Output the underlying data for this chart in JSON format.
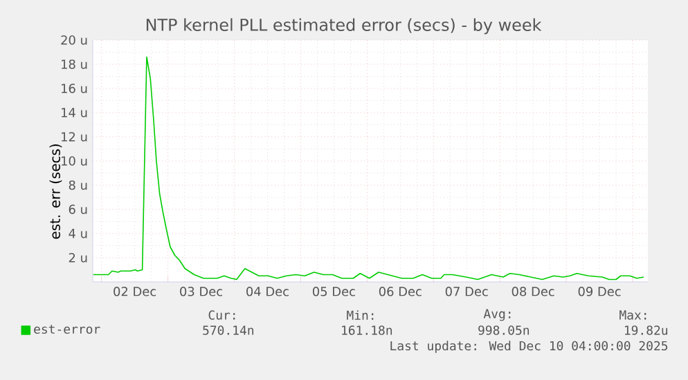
{
  "chart_data": {
    "type": "line",
    "title": "NTP kernel PLL estimated error (secs) - by week",
    "ylabel": "est. err (secs)",
    "xlim": [
      "2025-12-01T20:50",
      "2025-12-10T05:30"
    ],
    "ylim": [
      0,
      20
    ],
    "xticks": [
      {
        "value": "2025-12-02",
        "label": null
      },
      {
        "value": "2025-12-03",
        "label": null
      },
      {
        "value": "2025-12-04",
        "label": null
      },
      {
        "value": "2025-12-05",
        "label": null
      },
      {
        "value": "2025-12-06",
        "label": null
      },
      {
        "value": "2025-12-07",
        "label": null
      },
      {
        "value": "2025-12-08",
        "label": null
      },
      {
        "value": "2025-12-09",
        "label": null
      },
      {
        "value": "2025-12-10",
        "label": null
      },
      {
        "value": "2025-12-02T12:00",
        "label": "02 Dec"
      },
      {
        "value": "2025-12-03T12:00",
        "label": "03 Dec"
      },
      {
        "value": "2025-12-04T12:00",
        "label": "04 Dec"
      },
      {
        "value": "2025-12-05T12:00",
        "label": "05 Dec"
      },
      {
        "value": "2025-12-06T12:00",
        "label": "06 Dec"
      },
      {
        "value": "2025-12-07T12:00",
        "label": "07 Dec"
      },
      {
        "value": "2025-12-08T12:00",
        "label": "08 Dec"
      },
      {
        "value": "2025-12-09T12:00",
        "label": "09 Dec"
      }
    ],
    "yticks": [
      {
        "value": 2,
        "label": "2 u"
      },
      {
        "value": 4,
        "label": "4 u"
      },
      {
        "value": 6,
        "label": "6 u"
      },
      {
        "value": 8,
        "label": "8 u"
      },
      {
        "value": 10,
        "label": "10 u"
      },
      {
        "value": 12,
        "label": "12 u"
      },
      {
        "value": 14,
        "label": "14 u"
      },
      {
        "value": 16,
        "label": "16 u"
      },
      {
        "value": 18,
        "label": "18 u"
      },
      {
        "value": 20,
        "label": "20 u"
      }
    ],
    "grid": true,
    "legend": "bottom left",
    "series": [
      {
        "name": "est-error",
        "color": "#00cc00",
        "x": [
          "2025-12-01T21:00",
          "2025-12-02T02:30",
          "2025-12-02T03:50",
          "2025-12-02T06:00",
          "2025-12-02T07:00",
          "2025-12-02T10:30",
          "2025-12-02T12:10",
          "2025-12-02T13:00",
          "2025-12-02T14:45",
          "2025-12-02T16:20",
          "2025-12-02T17:40",
          "2025-12-02T18:50",
          "2025-12-02T19:50",
          "2025-12-02T21:00",
          "2025-12-02T22:10",
          "2025-12-02T23:30",
          "2025-12-03T00:50",
          "2025-12-03T02:30",
          "2025-12-03T04:10",
          "2025-12-03T06:10",
          "2025-12-03T09:30",
          "2025-12-03T12:50",
          "2025-12-03T17:50",
          "2025-12-03T20:20",
          "2025-12-03T22:50",
          "2025-12-04T00:50",
          "2025-12-04T03:50",
          "2025-12-04T06:20",
          "2025-12-04T08:50",
          "2025-12-04T12:10",
          "2025-12-04T15:30",
          "2025-12-04T18:50",
          "2025-12-04T22:10",
          "2025-12-05T01:30",
          "2025-12-05T04:50",
          "2025-12-05T08:10",
          "2025-12-05T11:30",
          "2025-12-05T14:50",
          "2025-12-05T19:00",
          "2025-12-05T21:30",
          "2025-12-06T00:50",
          "2025-12-06T04:10",
          "2025-12-06T07:30",
          "2025-12-06T12:30",
          "2025-12-06T16:40",
          "2025-12-06T20:00",
          "2025-12-06T23:20",
          "2025-12-07T02:40",
          "2025-12-07T03:50",
          "2025-12-07T06:50",
          "2025-12-07T11:50",
          "2025-12-07T16:00",
          "2025-12-07T21:00",
          "2025-12-08T01:10",
          "2025-12-08T03:40",
          "2025-12-08T07:00",
          "2025-12-08T11:10",
          "2025-12-08T15:20",
          "2025-12-08T19:30",
          "2025-12-08T22:50",
          "2025-12-09T01:20",
          "2025-12-09T03:50",
          "2025-12-09T08:00",
          "2025-12-09T13:00",
          "2025-12-09T15:30",
          "2025-12-09T18:00",
          "2025-12-09T19:40",
          "2025-12-09T23:00",
          "2025-12-10T01:30",
          "2025-12-10T04:00"
        ],
        "values": [
          0.6,
          0.6,
          0.9,
          0.8,
          0.9,
          0.9,
          1.0,
          0.9,
          1.0,
          18.6,
          16.8,
          13.4,
          10.0,
          7.3,
          5.8,
          4.3,
          2.9,
          2.2,
          1.8,
          1.1,
          0.6,
          0.3,
          0.3,
          0.5,
          0.3,
          0.2,
          1.1,
          0.8,
          0.5,
          0.5,
          0.3,
          0.5,
          0.6,
          0.5,
          0.8,
          0.6,
          0.6,
          0.3,
          0.3,
          0.7,
          0.3,
          0.8,
          0.6,
          0.3,
          0.3,
          0.6,
          0.3,
          0.3,
          0.6,
          0.6,
          0.4,
          0.2,
          0.6,
          0.4,
          0.7,
          0.6,
          0.4,
          0.2,
          0.5,
          0.4,
          0.5,
          0.7,
          0.5,
          0.4,
          0.2,
          0.2,
          0.5,
          0.5,
          0.3,
          0.4
        ]
      }
    ],
    "annotations": [
      "Cur:",
      "570.14n",
      "Min:",
      "161.18n",
      "Avg:",
      "998.05n",
      "Max:",
      "19.82u",
      "Last update: Wed Dec 10 04:00:00 2025"
    ]
  }
}
